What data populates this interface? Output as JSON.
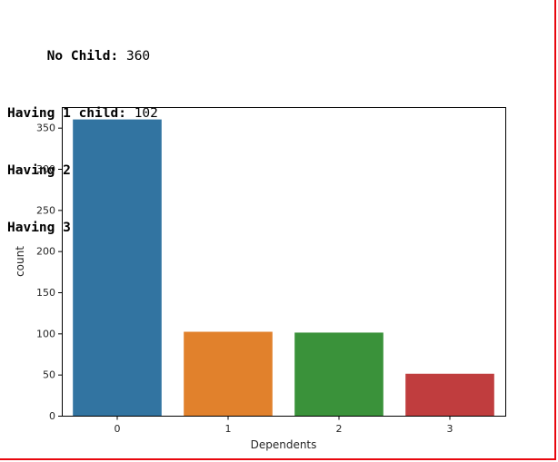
{
  "output": {
    "lines": [
      {
        "label": "No Child",
        "value": "360"
      },
      {
        "label": "Having 1 child",
        "value": "102"
      },
      {
        "label": "Having 2 child",
        "value": "101"
      },
      {
        "label": "Having 3 child",
        "value": "51"
      }
    ]
  },
  "chart_data": {
    "type": "bar",
    "categories": [
      "0",
      "1",
      "2",
      "3"
    ],
    "values": [
      360,
      102,
      101,
      51
    ],
    "colors": [
      "#3274a1",
      "#e1812c",
      "#3a923a",
      "#c03d3e"
    ],
    "xlabel": "Dependents",
    "ylabel": "count",
    "ylim": [
      0,
      375
    ],
    "yticks": [
      0,
      50,
      100,
      150,
      200,
      250,
      300,
      350
    ],
    "grid": false
  },
  "frame": {
    "border_color": "#e8060d"
  }
}
